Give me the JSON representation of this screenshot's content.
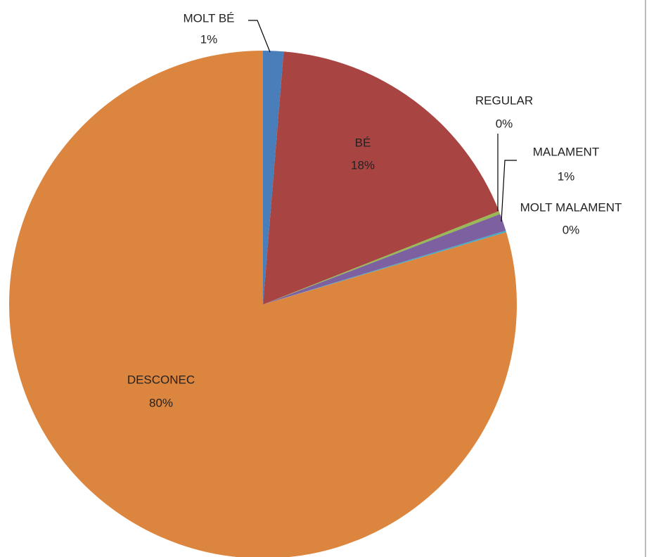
{
  "chart_data": {
    "type": "pie",
    "categories": [
      "MOLT  BÉ",
      "BÉ",
      "REGULAR",
      "MALAMENT",
      "MOLT MALAMENT",
      "DESCONEC"
    ],
    "values": [
      1.3,
      17.7,
      0.2,
      1.1,
      0.1,
      79.6
    ],
    "value_labels": [
      "1%",
      "18%",
      "0%",
      "1%",
      "0%",
      "80%"
    ],
    "colors": [
      "#4a7ebb",
      "#a84543",
      "#98b954",
      "#7d60a0",
      "#46aac5",
      "#dc853e"
    ]
  }
}
